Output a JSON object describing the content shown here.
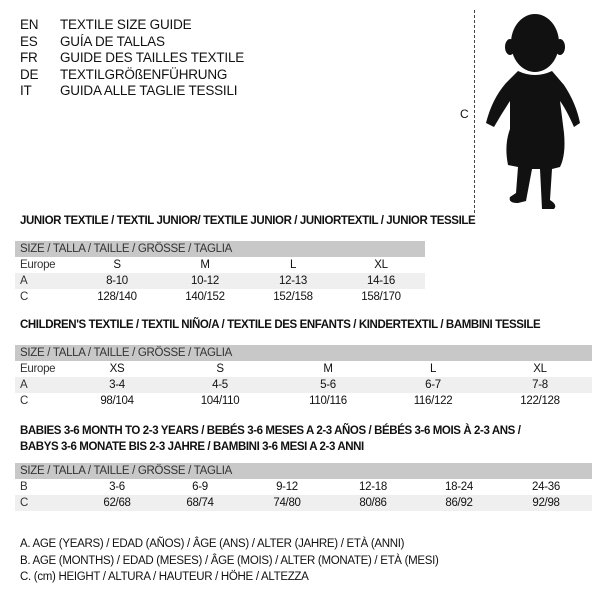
{
  "languages": [
    {
      "code": "EN",
      "text": "TEXTILE SIZE GUIDE"
    },
    {
      "code": "ES",
      "text": "GUÍA DE TALLAS"
    },
    {
      "code": "FR",
      "text": "GUIDE DES TAILLES TEXTILE"
    },
    {
      "code": "DE",
      "text": "TEXTILGRÖßENFÜHRUNG"
    },
    {
      "code": "IT",
      "text": "GUIDA ALLE TAGLIE TESSILI"
    }
  ],
  "figure": {
    "measure_label": "C",
    "icon": "baby-silhouette"
  },
  "size_header": "SIZE / TALLA / TAILLE / GRÖSSE / TAGLIA",
  "tables": [
    {
      "title": "JUNIOR TEXTILE / TEXTIL JUNIOR/ TEXTILE JUNIOR / JUNIORTEXTIL / JUNIOR TESSILE",
      "rows": [
        {
          "label": "Europe",
          "cells": [
            "S",
            "M",
            "L",
            "XL"
          ]
        },
        {
          "label": "A",
          "cells": [
            "8-10",
            "10-12",
            "12-13",
            "14-16"
          ]
        },
        {
          "label": "C",
          "cells": [
            "128/140",
            "140/152",
            "152/158",
            "158/170"
          ]
        }
      ]
    },
    {
      "title": "CHILDREN'S TEXTILE / TEXTIL NIÑO/A / TEXTILE DES ENFANTS / KINDERTEXTIL / BAMBINI TESSILE",
      "rows": [
        {
          "label": "Europe",
          "cells": [
            "XS",
            "S",
            "M",
            "L",
            "XL"
          ]
        },
        {
          "label": "A",
          "cells": [
            "3-4",
            "4-5",
            "5-6",
            "6-7",
            "7-8"
          ]
        },
        {
          "label": "C",
          "cells": [
            "98/104",
            "104/110",
            "110/116",
            "116/122",
            "122/128"
          ]
        }
      ]
    },
    {
      "title": "BABIES 3-6 MONTH TO 2-3 YEARS / BEBÉS 3-6 MESES A 2-3 AÑOS / BÉBÉS 3-6 MOIS À 2-3 ANS /",
      "title2": "BABYS 3-6 MONATE BIS 2-3 JAHRE / BAMBINI 3-6 MESI A 2-3 ANNI",
      "rows": [
        {
          "label": "B",
          "cells": [
            "3-6",
            "6-9",
            "9-12",
            "12-18",
            "18-24",
            "24-36"
          ]
        },
        {
          "label": "C",
          "cells": [
            "62/68",
            "68/74",
            "74/80",
            "80/86",
            "86/92",
            "92/98"
          ]
        }
      ]
    }
  ],
  "legend": [
    "A. AGE (YEARS) / EDAD (AÑOS) / ÂGE (ANS) / ALTER (JAHRE) / ETÀ (ANNI)",
    "B. AGE (MONTHS) / EDAD (MESES) / ÂGE (MOIS) / ALTER (MONATE) / ETÀ (MESI)",
    "C. (cm) HEIGHT / ALTURA / HAUTEUR / HÖHE / ALTEZZA"
  ]
}
